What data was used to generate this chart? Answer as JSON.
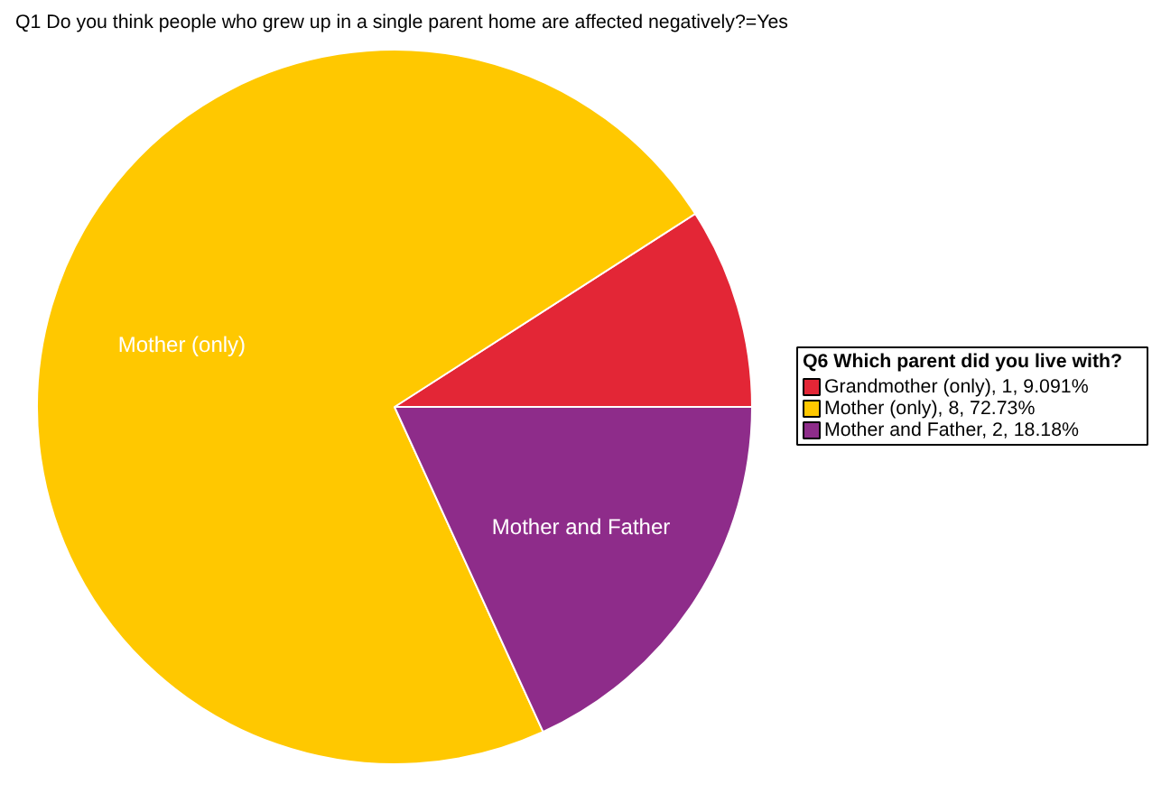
{
  "chart_data": {
    "type": "pie",
    "title": "Q1 Do you think people who grew up in a single parent home are affected negatively?=Yes",
    "legend_title": "Q6 Which parent did you live with?",
    "categories": [
      "Grandmother (only), 1, 9.091%",
      "Mother (only), 8, 72.73%",
      "Mother and Father, 2, 18.18%"
    ],
    "values": [
      9.091,
      72.73,
      18.18
    ],
    "colors": [
      "#e32636",
      "#ffc800",
      "#8e2c8a"
    ],
    "annotations": [
      {
        "text": "Mother (only)",
        "x": "Mother (only), 8, 72.73%"
      },
      {
        "text": "Mother and Father",
        "x": "Mother and Father, 2, 18.18%"
      }
    ],
    "legend": "right"
  }
}
